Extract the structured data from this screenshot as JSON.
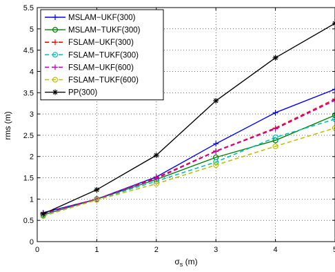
{
  "chart_data": {
    "type": "line",
    "title": "",
    "xlabel_main": "σ",
    "xlabel_sub": "s",
    "xlabel_unit": " (m)",
    "ylabel": "rms (m)",
    "xlim": [
      0,
      5
    ],
    "ylim": [
      0,
      5.5
    ],
    "xticks": [
      0,
      1,
      2,
      3,
      4,
      5
    ],
    "yticks": [
      0,
      0.5,
      1,
      1.5,
      2,
      2.5,
      3,
      3.5,
      4,
      4.5,
      5,
      5.5
    ],
    "ytick_labels": [
      "0",
      "0.5",
      "1",
      "1.5",
      "2",
      "2.5",
      "3",
      "3.5",
      "4",
      "4.5",
      "5",
      "5.5"
    ],
    "grid": true,
    "legend_position": "top-left",
    "x": [
      0.1,
      1,
      2,
      3,
      4,
      5
    ],
    "series": [
      {
        "name": "MSLAM−UKF(300)",
        "color": "#0000ff",
        "dash": "solid",
        "marker": "plus",
        "values": [
          0.68,
          1.0,
          1.52,
          2.3,
          3.03,
          3.58
        ]
      },
      {
        "name": "MSLAM−TUKF(300)",
        "color": "#008000",
        "dash": "solid",
        "marker": "circle",
        "values": [
          0.63,
          1.0,
          1.46,
          1.98,
          2.38,
          2.97
        ]
      },
      {
        "name": "FSLAM−UKF(300)",
        "color": "#ff0000",
        "dash": "dashed",
        "marker": "plus",
        "values": [
          0.66,
          1.0,
          1.5,
          2.13,
          2.67,
          3.35
        ]
      },
      {
        "name": "FSLAM−TUKF(300)",
        "color": "#00bfbf",
        "dash": "dashed",
        "marker": "circle",
        "values": [
          0.62,
          0.99,
          1.42,
          1.87,
          2.45,
          2.88
        ]
      },
      {
        "name": "FSLAM−UKF(600)",
        "color": "#bf00bf",
        "dash": "dashed",
        "marker": "plus",
        "values": [
          0.65,
          1.0,
          1.48,
          2.12,
          2.65,
          3.32
        ]
      },
      {
        "name": "FSLAM−TUKF(600)",
        "color": "#bfbf00",
        "dash": "dashed",
        "marker": "circle",
        "values": [
          0.6,
          0.98,
          1.36,
          1.8,
          2.24,
          2.67
        ]
      },
      {
        "name": "PP(300)",
        "color": "#000000",
        "dash": "solid",
        "marker": "star",
        "values": [
          0.65,
          1.22,
          2.03,
          3.31,
          4.32,
          5.13
        ]
      }
    ]
  }
}
